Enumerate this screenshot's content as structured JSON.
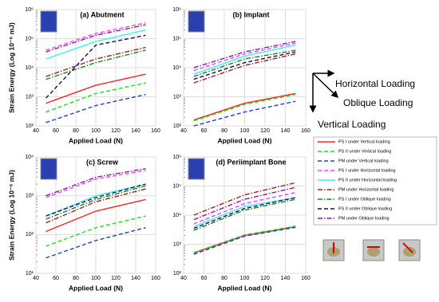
{
  "chart_data": [
    {
      "type": "line",
      "title": "(a) Abutment",
      "x_label": "Applied Load (N)",
      "y_label": "Strain Energy (Log 10⁻⁶ mJ)",
      "log_y": true,
      "grid": true,
      "x": [
        50,
        100,
        150
      ],
      "xlim": [
        40,
        160
      ],
      "xticks": [
        40,
        60,
        80,
        100,
        120,
        140,
        160
      ],
      "ylim": [
        100,
        1000000
      ],
      "yticks": [
        {
          "value": 100,
          "label": "10²"
        },
        {
          "value": 1000,
          "label": "10³"
        },
        {
          "value": 10000,
          "label": "10⁴"
        },
        {
          "value": 100000,
          "label": "10⁵"
        },
        {
          "value": 1000000,
          "label": "10⁶"
        }
      ],
      "series": [
        {
          "name": "PS I under Vertical loading",
          "color": "#ff2020",
          "dash": "solid",
          "values": [
            600,
            2500,
            6000
          ]
        },
        {
          "name": "PS II under Vertical loading",
          "color": "#22dd22",
          "dash": "dashed",
          "values": [
            300,
            1300,
            3000
          ]
        },
        {
          "name": "PM under Vertical loading",
          "color": "#2040c0",
          "dash": "dashed",
          "values": [
            130,
            500,
            1200
          ]
        },
        {
          "name": "PS I under Horizontal loading",
          "color": "#ff40ff",
          "dash": "dashed",
          "values": [
            40000,
            150000,
            350000
          ]
        },
        {
          "name": "PS II under Horizontal loading",
          "color": "#40f0f0",
          "dash": "solid",
          "values": [
            20000,
            80000,
            200000
          ]
        },
        {
          "name": "PM under Horizontal loading",
          "color": "#a02020",
          "dash": "dashdot",
          "values": [
            5000,
            20000,
            50000
          ]
        },
        {
          "name": "PS I under Oblique loading",
          "color": "#208020",
          "dash": "dashdot",
          "values": [
            4000,
            15000,
            40000
          ]
        },
        {
          "name": "PS II under Oblique loading",
          "color": "#101060",
          "dash": "dashed",
          "values": [
            900,
            60000,
            130000
          ]
        },
        {
          "name": "PM under Oblique loading",
          "color": "#8020a0",
          "dash": "dashdot",
          "values": [
            35000,
            130000,
            300000
          ]
        }
      ]
    },
    {
      "type": "line",
      "title": "(b) Implant",
      "x_label": "Applied Load (N)",
      "log_y": true,
      "grid": true,
      "x": [
        50,
        100,
        150
      ],
      "xlim": [
        40,
        160
      ],
      "xticks": [
        40,
        60,
        80,
        100,
        120,
        140,
        160
      ],
      "ylim": [
        100,
        1000000
      ],
      "yticks": [
        {
          "value": 100,
          "label": "10²"
        },
        {
          "value": 1000,
          "label": "10³"
        },
        {
          "value": 10000,
          "label": "10⁴"
        },
        {
          "value": 100000,
          "label": "10⁵"
        },
        {
          "value": 1000000,
          "label": "10⁶"
        }
      ],
      "series": [
        {
          "name": "PS I under Vertical loading",
          "color": "#ff2020",
          "dash": "solid",
          "values": [
            160,
            600,
            1300
          ]
        },
        {
          "name": "PS II under Vertical loading",
          "color": "#22dd22",
          "dash": "dashed",
          "values": [
            150,
            550,
            1200
          ]
        },
        {
          "name": "PM under Vertical loading",
          "color": "#2040c0",
          "dash": "dashed",
          "values": [
            100,
            300,
            700
          ]
        },
        {
          "name": "PS I under Horizontal loading",
          "color": "#ff40ff",
          "dash": "dashed",
          "values": [
            8000,
            30000,
            70000
          ]
        },
        {
          "name": "PS II under Horizontal loading",
          "color": "#40f0f0",
          "dash": "solid",
          "values": [
            6000,
            25000,
            60000
          ]
        },
        {
          "name": "PM under Horizontal loading",
          "color": "#a02020",
          "dash": "dashdot",
          "values": [
            3000,
            12000,
            30000
          ]
        },
        {
          "name": "PS I under Oblique loading",
          "color": "#208020",
          "dash": "dashdot",
          "values": [
            5000,
            20000,
            40000
          ]
        },
        {
          "name": "PS II under Oblique loading",
          "color": "#101060",
          "dash": "dashed",
          "values": [
            4000,
            15000,
            35000
          ]
        },
        {
          "name": "PM under Oblique loading",
          "color": "#8020a0",
          "dash": "dashdot",
          "values": [
            10000,
            35000,
            80000
          ]
        }
      ]
    },
    {
      "type": "line",
      "title": "(c) Screw",
      "x_label": "Applied Load (N)",
      "y_label": "Strain Energy (Log 10⁻⁶ mJ)",
      "log_y": true,
      "grid": true,
      "x": [
        50,
        100,
        150
      ],
      "xlim": [
        40,
        160
      ],
      "xticks": [
        40,
        60,
        80,
        100,
        120,
        140,
        160
      ],
      "ylim": [
        10,
        10000
      ],
      "yticks": [
        {
          "value": 10,
          "label": "10¹"
        },
        {
          "value": 100,
          "label": "10²"
        },
        {
          "value": 1000,
          "label": "10³"
        },
        {
          "value": 10000,
          "label": "10⁴"
        }
      ],
      "series": [
        {
          "name": "PS I under Vertical loading",
          "color": "#ff2020",
          "dash": "solid",
          "values": [
            120,
            400,
            800
          ]
        },
        {
          "name": "PS II under Vertical loading",
          "color": "#22dd22",
          "dash": "dashed",
          "values": [
            50,
            150,
            300
          ]
        },
        {
          "name": "PM under Vertical loading",
          "color": "#2040c0",
          "dash": "dashed",
          "values": [
            25,
            70,
            150
          ]
        },
        {
          "name": "PS I under Horizontal loading",
          "color": "#ff40ff",
          "dash": "dashed",
          "values": [
            900,
            2700,
            4500
          ]
        },
        {
          "name": "PS II under Horizontal loading",
          "color": "#40f0f0",
          "dash": "solid",
          "values": [
            300,
            1000,
            2000
          ]
        },
        {
          "name": "PM under Horizontal loading",
          "color": "#a02020",
          "dash": "dashdot",
          "values": [
            200,
            700,
            1500
          ]
        },
        {
          "name": "PS I under Oblique loading",
          "color": "#208020",
          "dash": "dashdot",
          "values": [
            250,
            800,
            1800
          ]
        },
        {
          "name": "PS II under Oblique loading",
          "color": "#101060",
          "dash": "dashed",
          "values": [
            300,
            900,
            2000
          ]
        },
        {
          "name": "PM under Oblique loading",
          "color": "#8020a0",
          "dash": "dashdot",
          "values": [
            1000,
            3000,
            5000
          ]
        }
      ]
    },
    {
      "type": "line",
      "title": "(d) Periimplant Bone",
      "x_label": "Applied Load (N)",
      "log_y": true,
      "grid": true,
      "x": [
        50,
        100,
        150
      ],
      "xlim": [
        40,
        160
      ],
      "xticks": [
        40,
        60,
        80,
        100,
        120,
        140,
        160
      ],
      "ylim": [
        100,
        1000000
      ],
      "yticks": [
        {
          "value": 100,
          "label": "10²"
        },
        {
          "value": 1000,
          "label": "10³"
        },
        {
          "value": 10000,
          "label": "10⁴"
        },
        {
          "value": 100000,
          "label": "10⁵"
        },
        {
          "value": 1000000,
          "label": "10⁶"
        }
      ],
      "series": [
        {
          "name": "PS I under Vertical loading",
          "color": "#ff2020",
          "dash": "solid",
          "values": [
            500,
            2000,
            4000
          ]
        },
        {
          "name": "PS II under Vertical loading",
          "color": "#22dd22",
          "dash": "dashed",
          "values": [
            520,
            2100,
            4200
          ]
        },
        {
          "name": "PM under Vertical loading",
          "color": "#2040c0",
          "dash": "dashed",
          "values": [
            450,
            1900,
            3800
          ]
        },
        {
          "name": "PS I under Horizontal loading",
          "color": "#ff40ff",
          "dash": "dashed",
          "values": [
            5000,
            25000,
            60000
          ]
        },
        {
          "name": "PS II under Horizontal loading",
          "color": "#40f0f0",
          "dash": "solid",
          "values": [
            4000,
            20000,
            40000
          ]
        },
        {
          "name": "PM under Horizontal loading",
          "color": "#a02020",
          "dash": "dashdot",
          "values": [
            10000,
            50000,
            130000
          ]
        },
        {
          "name": "PS I under Oblique loading",
          "color": "#208020",
          "dash": "dashdot",
          "values": [
            3000,
            15000,
            35000
          ]
        },
        {
          "name": "PS II under Oblique loading",
          "color": "#101060",
          "dash": "dashed",
          "values": [
            3500,
            17000,
            40000
          ]
        },
        {
          "name": "PM under Oblique loading",
          "color": "#8020a0",
          "dash": "dashdot",
          "values": [
            7000,
            35000,
            90000
          ]
        }
      ]
    }
  ],
  "annotations": {
    "horizontal": "Horizontal Loading",
    "oblique": "Oblique Loading",
    "vertical": "Vertical Loading"
  }
}
